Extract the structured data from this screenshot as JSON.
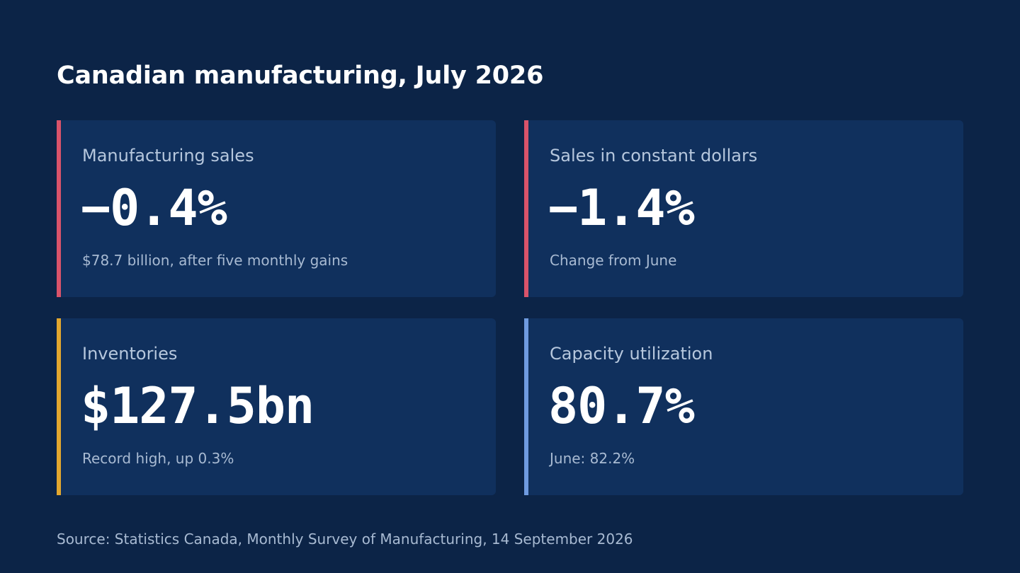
{
  "page": {
    "title": "Canadian manufacturing, July 2026",
    "source": "Source: Statistics Canada, Monthly Survey of Manufacturing, 14 September 2026"
  },
  "cards": [
    {
      "label": "Manufacturing sales",
      "value": "−0.4%",
      "note": "$78.7 billion, after five monthly gains",
      "accent_color": "#d9536a"
    },
    {
      "label": "Sales in constant dollars",
      "value": "−1.4%",
      "note": "Change from June",
      "accent_color": "#d9536a"
    },
    {
      "label": "Inventories",
      "value": "$127.5bn",
      "note": "Record high, up 0.3%",
      "accent_color": "#e3a72f"
    },
    {
      "label": "Capacity utilization",
      "value": "80.7%",
      "note": "June: 82.2%",
      "accent_color": "#6f9be0"
    }
  ]
}
